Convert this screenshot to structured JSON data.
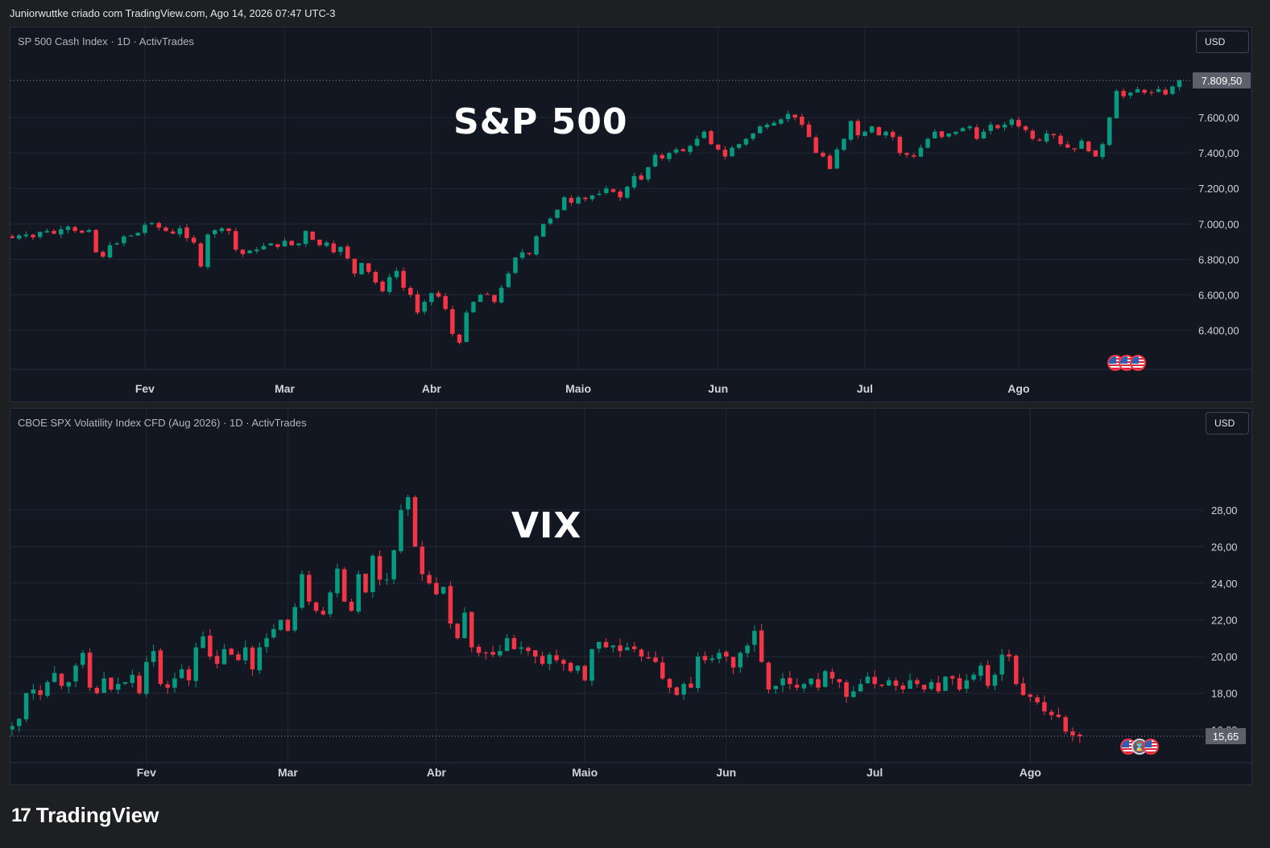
{
  "header": {
    "attribution": "Juniorwuttke criado com TradingView.com, Ago 14, 2026 07:47 UTC-3"
  },
  "brand": {
    "logo_icon": "tradingview-logo-icon",
    "logo_text": "17",
    "name": "TradingView"
  },
  "colors": {
    "up": "#089981",
    "down": "#f23645",
    "grid": "#232733",
    "axis_text": "#d1d4dc"
  },
  "chart_data": [
    {
      "type": "candlestick",
      "legend": "SP 500 Cash Index · 1D · ActivTrades",
      "overlay_label": "S&P 500",
      "currency_button": "USD",
      "last_price": 7809.5,
      "last_price_label": "7.809,50",
      "ylim": [
        6180,
        7900
      ],
      "yticks": [
        6400,
        6600,
        6800,
        7000,
        7200,
        7400,
        7600
      ],
      "ytick_labels": [
        "6.400,00",
        "6.600,00",
        "6.800,00",
        "7.000,00",
        "7.200,00",
        "7.400,00",
        "7.600,00"
      ],
      "xtick_labels": [
        "Fev",
        "Mar",
        "Abr",
        "Maio",
        "Jun",
        "Jul",
        "Ago"
      ],
      "xtick_index": [
        19,
        39,
        60,
        81,
        101,
        122,
        144
      ],
      "closes": [
        6920,
        6935,
        6940,
        6925,
        6955,
        6960,
        6945,
        6970,
        6985,
        6960,
        6950,
        6965,
        6840,
        6815,
        6880,
        6890,
        6930,
        6935,
        6950,
        6995,
        7005,
        6980,
        6960,
        6945,
        6975,
        6920,
        6895,
        6760,
        6940,
        6965,
        6975,
        6960,
        6855,
        6830,
        6850,
        6855,
        6875,
        6890,
        6870,
        6905,
        6880,
        6890,
        6960,
        6910,
        6880,
        6895,
        6840,
        6870,
        6805,
        6720,
        6780,
        6730,
        6670,
        6620,
        6700,
        6735,
        6640,
        6600,
        6500,
        6560,
        6610,
        6590,
        6520,
        6380,
        6330,
        6500,
        6560,
        6600,
        6600,
        6560,
        6640,
        6720,
        6810,
        6840,
        6830,
        6930,
        7000,
        7030,
        7080,
        7150,
        7120,
        7150,
        7140,
        7160,
        7170,
        7200,
        7180,
        7150,
        7210,
        7270,
        7250,
        7320,
        7390,
        7370,
        7400,
        7420,
        7410,
        7440,
        7480,
        7520,
        7450,
        7420,
        7380,
        7430,
        7450,
        7480,
        7510,
        7550,
        7560,
        7570,
        7590,
        7620,
        7600,
        7560,
        7490,
        7400,
        7380,
        7310,
        7420,
        7480,
        7580,
        7500,
        7520,
        7550,
        7500,
        7520,
        7490,
        7400,
        7390,
        7380,
        7430,
        7480,
        7520,
        7490,
        7510,
        7520,
        7540,
        7550,
        7480,
        7520,
        7560,
        7540,
        7560,
        7590,
        7550,
        7530,
        7480,
        7470,
        7510,
        7500,
        7450,
        7430,
        7420,
        7470,
        7410,
        7380,
        7450,
        7600,
        7750,
        7720,
        7740,
        7760,
        7740,
        7740,
        7760,
        7730,
        7775,
        7809
      ]
    },
    {
      "type": "candlestick",
      "legend": "CBOE SPX Volatility Index CFD (Aug 2026) · 1D · ActivTrades",
      "overlay_label": "VIX",
      "currency_button": "USD",
      "last_price": 15.65,
      "last_price_label": "15,65",
      "ylim": [
        14.2,
        31.6
      ],
      "yticks": [
        16,
        18,
        20,
        22,
        24,
        26,
        28
      ],
      "ytick_labels": [
        "16,00",
        "18,00",
        "20,00",
        "22,00",
        "24,00",
        "26,00",
        "28,00"
      ],
      "xtick_labels": [
        "Fev",
        "Mar",
        "Abr",
        "Maio",
        "Jun",
        "Jul",
        "Ago"
      ],
      "xtick_index": [
        19,
        39,
        60,
        81,
        101,
        122,
        144
      ],
      "closes": [
        16.2,
        16.6,
        18.0,
        18.2,
        17.9,
        18.6,
        19.1,
        18.4,
        18.6,
        19.5,
        20.2,
        18.3,
        18.0,
        18.8,
        18.2,
        18.5,
        18.6,
        19.0,
        18.0,
        19.7,
        20.3,
        18.5,
        18.3,
        18.8,
        19.3,
        18.7,
        20.5,
        21.1,
        20.0,
        19.6,
        20.4,
        20.1,
        19.8,
        20.5,
        19.3,
        20.5,
        21.0,
        21.5,
        22.0,
        21.4,
        22.7,
        24.5,
        23.0,
        22.5,
        22.3,
        23.5,
        24.8,
        23.0,
        22.5,
        24.5,
        23.5,
        25.5,
        24.2,
        24.2,
        25.8,
        28.0,
        28.7,
        26.0,
        24.5,
        24.0,
        23.4,
        23.8,
        21.8,
        21.0,
        22.4,
        20.5,
        20.2,
        20.2,
        20.1,
        20.3,
        21.0,
        20.4,
        20.5,
        20.3,
        20.0,
        19.6,
        20.1,
        19.8,
        19.6,
        19.2,
        19.5,
        18.7,
        20.4,
        20.8,
        20.5,
        20.6,
        20.3,
        20.5,
        20.4,
        20.0,
        19.9,
        19.7,
        18.8,
        18.3,
        17.9,
        18.5,
        18.3,
        20.0,
        19.8,
        19.9,
        20.2,
        20.0,
        19.4,
        20.2,
        20.6,
        21.4,
        19.7,
        18.2,
        18.4,
        18.8,
        18.5,
        18.3,
        18.5,
        18.8,
        18.3,
        19.2,
        18.8,
        18.6,
        17.8,
        18.1,
        18.5,
        18.9,
        18.5,
        18.4,
        18.7,
        18.4,
        18.2,
        18.7,
        18.5,
        18.2,
        18.6,
        18.1,
        18.9,
        18.8,
        18.2,
        18.7,
        19.0,
        19.5,
        18.4,
        19.0,
        20.1,
        20.0,
        18.5,
        17.9,
        17.8,
        17.5,
        17.0,
        16.8,
        16.7,
        15.9,
        15.7,
        15.65
      ]
    }
  ]
}
